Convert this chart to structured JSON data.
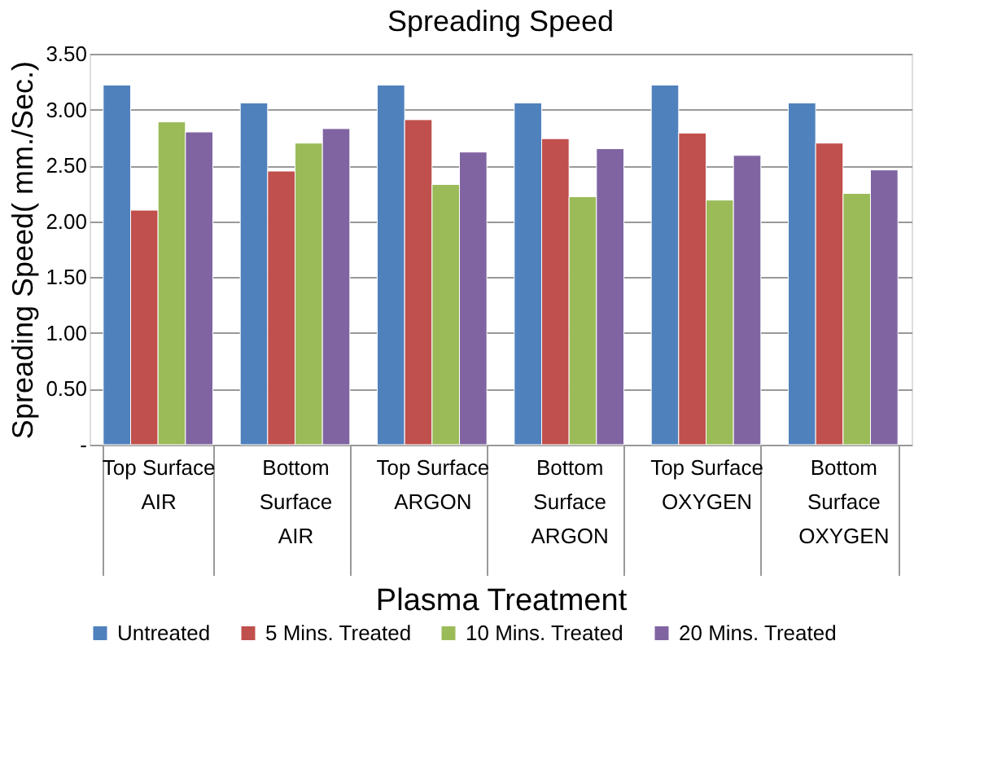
{
  "chart_data": {
    "type": "bar",
    "title": "Spreading Speed",
    "xlabel": "Plasma Treatment",
    "ylabel": "Spreading Speed( mm./Sec.)",
    "categories": [
      "Top Surface\nAIR",
      "Bottom Surface\nAIR",
      "Top Surface\nARGON",
      "Bottom Surface\nARGON",
      "Top Surface\nOXYGEN",
      "Bottom Surface\nOXYGEN"
    ],
    "series": [
      {
        "name": "Untreated",
        "color": "#4f81bd",
        "values": [
          3.22,
          3.06,
          3.22,
          3.06,
          3.22,
          3.06
        ]
      },
      {
        "name": "5 Mins. Treated",
        "color": "#c0504d",
        "values": [
          2.1,
          2.45,
          2.91,
          2.74,
          2.79,
          2.7
        ]
      },
      {
        "name": "10 Mins. Treated",
        "color": "#9bbb59",
        "values": [
          2.89,
          2.7,
          2.33,
          2.22,
          2.19,
          2.25
        ]
      },
      {
        "name": "20 Mins. Treated",
        "color": "#8064a2",
        "values": [
          2.8,
          2.83,
          2.62,
          2.65,
          2.59,
          2.46
        ]
      }
    ],
    "ylim": [
      0,
      3.5
    ],
    "yticks": [
      {
        "value": 0,
        "label": "-"
      },
      {
        "value": 0.5,
        "label": "0.50"
      },
      {
        "value": 1,
        "label": "1.00"
      },
      {
        "value": 1.5,
        "label": "1.50"
      },
      {
        "value": 2,
        "label": "2.00"
      },
      {
        "value": 2.5,
        "label": "2.50"
      },
      {
        "value": 3,
        "label": "3.00"
      },
      {
        "value": 3.5,
        "label": "3.50"
      }
    ],
    "grid": "y",
    "legend": "bottom"
  }
}
